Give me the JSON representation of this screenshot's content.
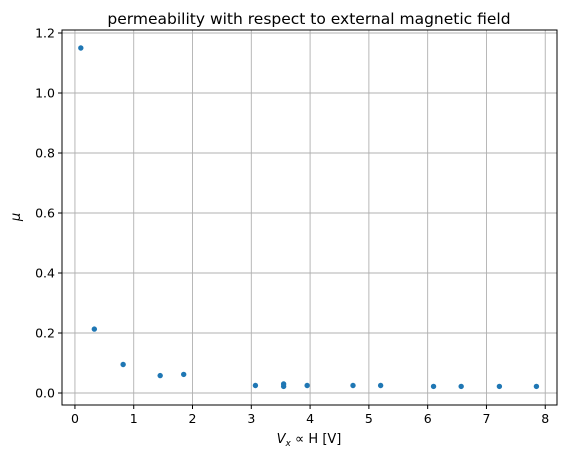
{
  "chart_data": {
    "type": "scatter",
    "title": "permeability with respect to external magnetic field",
    "xlabel_parts": {
      "var": "V",
      "sub": "x",
      "rest": " ∝ H [V]"
    },
    "ylabel": "μ",
    "xlim": [
      -0.22,
      8.2
    ],
    "ylim": [
      -0.04,
      1.21
    ],
    "xticks": [
      0,
      1,
      2,
      3,
      4,
      5,
      6,
      7,
      8
    ],
    "yticks": [
      0.0,
      0.2,
      0.4,
      0.6,
      0.8,
      1.0,
      1.2
    ],
    "xtick_labels": [
      "0",
      "1",
      "2",
      "3",
      "4",
      "5",
      "6",
      "7",
      "8"
    ],
    "ytick_labels": [
      "0.0",
      "0.2",
      "0.4",
      "0.6",
      "0.8",
      "1.0",
      "1.2"
    ],
    "grid": true,
    "marker_color": "#1f77b4",
    "x": [
      0.1,
      0.33,
      0.82,
      1.45,
      1.85,
      3.07,
      3.55,
      3.55,
      3.95,
      4.73,
      5.2,
      6.1,
      6.57,
      7.22,
      7.85
    ],
    "y": [
      1.15,
      0.213,
      0.095,
      0.058,
      0.062,
      0.025,
      0.022,
      0.03,
      0.025,
      0.025,
      0.025,
      0.022,
      0.022,
      0.022,
      0.022
    ]
  }
}
